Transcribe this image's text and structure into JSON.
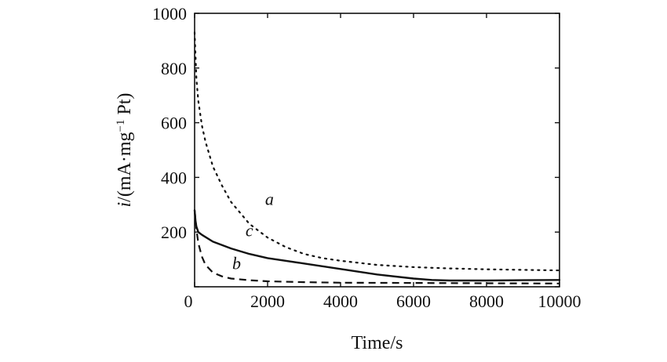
{
  "chart_data": {
    "type": "line",
    "xlabel": "Time/s",
    "ylabel_parts": [
      "i",
      "/(mA·mg",
      "−1",
      " Pt)"
    ],
    "xlim": [
      0,
      10000
    ],
    "ylim": [
      0,
      1000
    ],
    "xticks": [
      0,
      2000,
      4000,
      6000,
      8000,
      10000
    ],
    "yticks": [
      0,
      200,
      400,
      600,
      800,
      1000
    ],
    "xtick_labels": [
      "0",
      "2000",
      "4000",
      "6000",
      "8000",
      "10000"
    ],
    "ytick_labels": [
      "0",
      "200",
      "400",
      "600",
      "800",
      "1000"
    ],
    "grid": false,
    "series": [
      {
        "name": "a",
        "style": "dotted",
        "color": "#111111",
        "x": [
          0,
          50,
          100,
          200,
          300,
          500,
          750,
          1000,
          1500,
          2000,
          2500,
          3000,
          3500,
          4000,
          5000,
          6000,
          7000,
          8000,
          9000,
          10000
        ],
        "y": [
          930,
          760,
          680,
          590,
          530,
          440,
          370,
          310,
          230,
          180,
          145,
          120,
          105,
          95,
          80,
          72,
          67,
          64,
          62,
          60
        ]
      },
      {
        "name": "b",
        "style": "dashed",
        "color": "#111111",
        "x": [
          0,
          50,
          100,
          200,
          300,
          500,
          750,
          1000,
          1500,
          2000,
          3000,
          4000,
          6000,
          8000,
          10000
        ],
        "y": [
          280,
          210,
          160,
          110,
          80,
          52,
          38,
          30,
          24,
          20,
          17,
          15,
          14,
          13,
          12
        ]
      },
      {
        "name": "c",
        "style": "solid",
        "color": "#111111",
        "x": [
          0,
          25,
          50,
          100,
          200,
          500,
          1000,
          1500,
          2000,
          3000,
          4000,
          5000,
          6000,
          6500,
          7000,
          8000,
          9000,
          10000
        ],
        "y": [
          280,
          240,
          220,
          200,
          190,
          165,
          140,
          120,
          105,
          85,
          65,
          45,
          30,
          25,
          23,
          23,
          24,
          25
        ]
      }
    ],
    "series_labels": [
      {
        "text": "a",
        "x": 2050,
        "y": 300
      },
      {
        "text": "c",
        "x": 1500,
        "y": 185
      },
      {
        "text": "b",
        "x": 1150,
        "y": 65
      }
    ]
  }
}
